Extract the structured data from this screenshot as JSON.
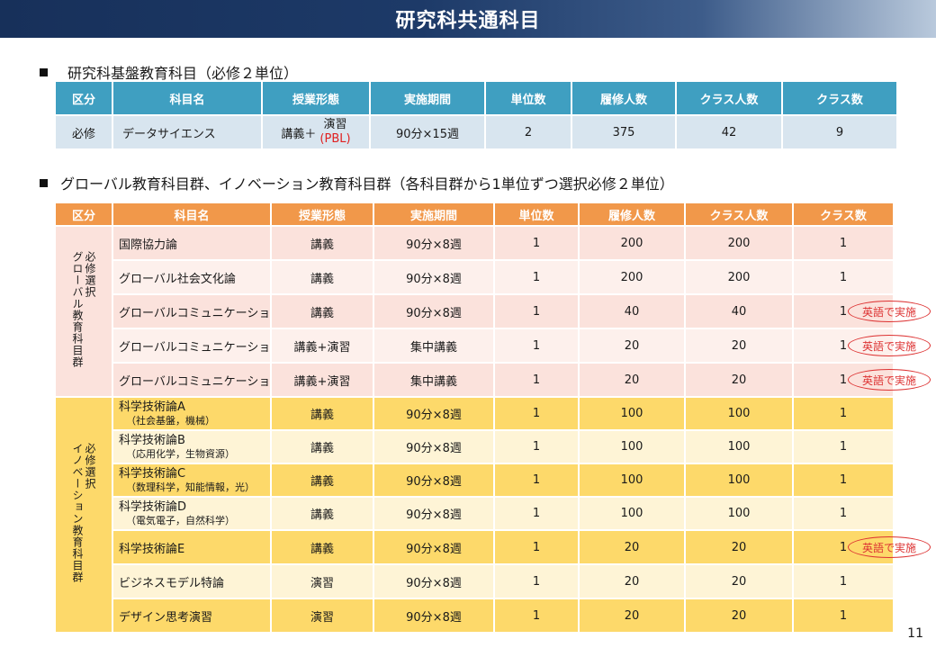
{
  "title": "研究科共通科目",
  "section1": {
    "heading": "研究科基盤教育科目（必修２単位）",
    "headers": [
      "区分",
      "科目名",
      "授業形態",
      "実施期間",
      "単位数",
      "履修人数",
      "クラス人数",
      "クラス数"
    ],
    "row": {
      "category": "必修",
      "name": "データサイエンス",
      "mode_prefix": "講義＋",
      "mode_top": "演習",
      "mode_bottom": "(PBL)",
      "period": "90分×15週",
      "credits": "2",
      "enrollment": "375",
      "class_size": "42",
      "classes": "9"
    }
  },
  "section2": {
    "heading": "グローバル教育科目群、イノベーション教育科目群（各科目群から1単位ずつ選択必修２単位）",
    "headers": [
      "区分",
      "科目名",
      "授業形態",
      "実施期間",
      "単位数",
      "履修人数",
      "クラス人数",
      "クラス数"
    ],
    "global_group": {
      "label_line1": "グローバル教育科目群",
      "label_line2": "必修選択",
      "rows": [
        {
          "name": "国際協力論",
          "mode": "講義",
          "period": "90分×8週",
          "credits": "1",
          "enrollment": "200",
          "class_size": "200",
          "classes": "1"
        },
        {
          "name": "グローバル社会文化論",
          "mode": "講義",
          "period": "90分×8週",
          "credits": "1",
          "enrollment": "200",
          "class_size": "200",
          "classes": "1"
        },
        {
          "name": "グローバルコミュニケーションA",
          "mode": "講義",
          "period": "90分×8週",
          "credits": "1",
          "enrollment": "40",
          "class_size": "40",
          "classes": "1"
        },
        {
          "name": "グローバルコミュニケーションB",
          "mode": "講義+演習",
          "period": "集中講義",
          "credits": "1",
          "enrollment": "20",
          "class_size": "20",
          "classes": "1"
        },
        {
          "name": "グローバルコミュニケーションC",
          "mode": "講義+演習",
          "period": "集中講義",
          "credits": "1",
          "enrollment": "20",
          "class_size": "20",
          "classes": "1"
        }
      ]
    },
    "innovation_group": {
      "label_line1": "イノベーション教育科目群",
      "label_line2": "必修選択",
      "rows": [
        {
          "name": "科学技術論A",
          "sub": "（社会基盤，機械）",
          "mode": "講義",
          "period": "90分×8週",
          "credits": "1",
          "enrollment": "100",
          "class_size": "100",
          "classes": "1"
        },
        {
          "name": "科学技術論B",
          "sub": "（応用化学，生物資源）",
          "mode": "講義",
          "period": "90分×8週",
          "credits": "1",
          "enrollment": "100",
          "class_size": "100",
          "classes": "1"
        },
        {
          "name": "科学技術論C",
          "sub": "（数理科学，知能情報，光）",
          "mode": "講義",
          "period": "90分×8週",
          "credits": "1",
          "enrollment": "100",
          "class_size": "100",
          "classes": "1"
        },
        {
          "name": "科学技術論D",
          "sub": "（電気電子，自然科学）",
          "mode": "講義",
          "period": "90分×8週",
          "credits": "1",
          "enrollment": "100",
          "class_size": "100",
          "classes": "1"
        },
        {
          "name": "科学技術論E",
          "mode": "講義",
          "period": "90分×8週",
          "credits": "1",
          "enrollment": "20",
          "class_size": "20",
          "classes": "1"
        },
        {
          "name": "ビジネスモデル特論",
          "mode": "演習",
          "period": "90分×8週",
          "credits": "1",
          "enrollment": "20",
          "class_size": "20",
          "classes": "1"
        },
        {
          "name": "デザイン思考演習",
          "mode": "演習",
          "period": "90分×8週",
          "credits": "1",
          "enrollment": "20",
          "class_size": "20",
          "classes": "1"
        }
      ]
    },
    "english_note": "英語で実施"
  },
  "page_number": "11"
}
